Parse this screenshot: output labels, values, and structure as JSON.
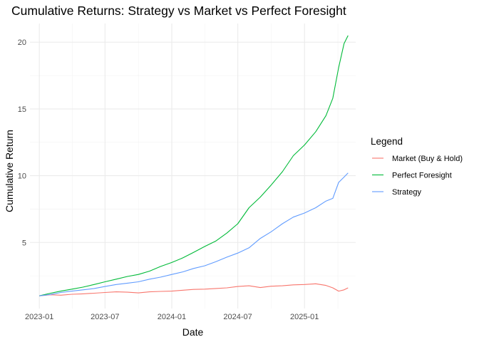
{
  "chart_data": {
    "type": "line",
    "title": "Cumulative Returns: Strategy vs Market vs Perfect Foresight",
    "xlabel": "Date",
    "ylabel": "Cumulative Return",
    "x_range": [
      "2022-12-06",
      "2025-05-22"
    ],
    "ylim": [
      0.05,
      21.4
    ],
    "x_ticks": [
      {
        "date": "2023-01-01",
        "label": "2023-01"
      },
      {
        "date": "2023-07-01",
        "label": "2023-07"
      },
      {
        "date": "2024-01-01",
        "label": "2024-01"
      },
      {
        "date": "2024-07-01",
        "label": "2024-07"
      },
      {
        "date": "2025-01-01",
        "label": "2025-01"
      }
    ],
    "y_ticks": [
      5,
      10,
      15,
      20
    ],
    "grid": true,
    "legend": {
      "title": "Legend",
      "position": "right"
    },
    "series": [
      {
        "name": "Market (Buy & Hold)",
        "color": "#F8766D",
        "points": [
          [
            "2023-01-01",
            1.0
          ],
          [
            "2023-02-01",
            1.08
          ],
          [
            "2023-03-01",
            1.05
          ],
          [
            "2023-04-01",
            1.12
          ],
          [
            "2023-05-01",
            1.15
          ],
          [
            "2023-06-01",
            1.2
          ],
          [
            "2023-07-01",
            1.25
          ],
          [
            "2023-08-01",
            1.3
          ],
          [
            "2023-09-01",
            1.27
          ],
          [
            "2023-10-01",
            1.22
          ],
          [
            "2023-11-01",
            1.3
          ],
          [
            "2023-12-01",
            1.33
          ],
          [
            "2024-01-01",
            1.35
          ],
          [
            "2024-02-01",
            1.42
          ],
          [
            "2024-03-01",
            1.48
          ],
          [
            "2024-04-01",
            1.5
          ],
          [
            "2024-05-01",
            1.55
          ],
          [
            "2024-06-01",
            1.6
          ],
          [
            "2024-07-01",
            1.7
          ],
          [
            "2024-08-01",
            1.75
          ],
          [
            "2024-09-01",
            1.62
          ],
          [
            "2024-10-01",
            1.72
          ],
          [
            "2024-11-01",
            1.75
          ],
          [
            "2024-12-01",
            1.82
          ],
          [
            "2025-01-01",
            1.85
          ],
          [
            "2025-02-01",
            1.9
          ],
          [
            "2025-03-01",
            1.78
          ],
          [
            "2025-03-20",
            1.6
          ],
          [
            "2025-04-05",
            1.35
          ],
          [
            "2025-04-20",
            1.45
          ],
          [
            "2025-05-01",
            1.6
          ]
        ]
      },
      {
        "name": "Perfect Foresight",
        "color": "#00BA38",
        "points": [
          [
            "2023-01-01",
            1.0
          ],
          [
            "2023-02-01",
            1.2
          ],
          [
            "2023-03-01",
            1.35
          ],
          [
            "2023-04-01",
            1.5
          ],
          [
            "2023-05-01",
            1.65
          ],
          [
            "2023-06-01",
            1.85
          ],
          [
            "2023-07-01",
            2.05
          ],
          [
            "2023-08-01",
            2.25
          ],
          [
            "2023-09-01",
            2.45
          ],
          [
            "2023-10-01",
            2.6
          ],
          [
            "2023-11-01",
            2.85
          ],
          [
            "2023-12-01",
            3.2
          ],
          [
            "2024-01-01",
            3.5
          ],
          [
            "2024-02-01",
            3.85
          ],
          [
            "2024-03-01",
            4.25
          ],
          [
            "2024-04-01",
            4.7
          ],
          [
            "2024-05-01",
            5.1
          ],
          [
            "2024-06-01",
            5.7
          ],
          [
            "2024-07-01",
            6.4
          ],
          [
            "2024-08-01",
            7.6
          ],
          [
            "2024-09-01",
            8.4
          ],
          [
            "2024-10-01",
            9.3
          ],
          [
            "2024-11-01",
            10.3
          ],
          [
            "2024-12-01",
            11.5
          ],
          [
            "2025-01-01",
            12.3
          ],
          [
            "2025-02-01",
            13.3
          ],
          [
            "2025-03-01",
            14.5
          ],
          [
            "2025-03-20",
            15.8
          ],
          [
            "2025-04-05",
            18.1
          ],
          [
            "2025-04-20",
            19.9
          ],
          [
            "2025-05-01",
            20.5
          ]
        ]
      },
      {
        "name": "Strategy",
        "color": "#619CFF",
        "points": [
          [
            "2023-01-01",
            1.0
          ],
          [
            "2023-02-01",
            1.1
          ],
          [
            "2023-03-01",
            1.25
          ],
          [
            "2023-04-01",
            1.35
          ],
          [
            "2023-05-01",
            1.45
          ],
          [
            "2023-06-01",
            1.55
          ],
          [
            "2023-07-01",
            1.7
          ],
          [
            "2023-08-01",
            1.85
          ],
          [
            "2023-09-01",
            1.95
          ],
          [
            "2023-10-01",
            2.05
          ],
          [
            "2023-11-01",
            2.25
          ],
          [
            "2023-12-01",
            2.4
          ],
          [
            "2024-01-01",
            2.6
          ],
          [
            "2024-02-01",
            2.8
          ],
          [
            "2024-03-01",
            3.05
          ],
          [
            "2024-04-01",
            3.25
          ],
          [
            "2024-05-01",
            3.55
          ],
          [
            "2024-06-01",
            3.9
          ],
          [
            "2024-07-01",
            4.2
          ],
          [
            "2024-08-01",
            4.6
          ],
          [
            "2024-09-01",
            5.3
          ],
          [
            "2024-10-01",
            5.8
          ],
          [
            "2024-11-01",
            6.4
          ],
          [
            "2024-12-01",
            6.9
          ],
          [
            "2025-01-01",
            7.2
          ],
          [
            "2025-02-01",
            7.6
          ],
          [
            "2025-03-01",
            8.1
          ],
          [
            "2025-03-20",
            8.3
          ],
          [
            "2025-04-05",
            9.5
          ],
          [
            "2025-04-20",
            9.9
          ],
          [
            "2025-05-01",
            10.2
          ]
        ]
      }
    ]
  }
}
